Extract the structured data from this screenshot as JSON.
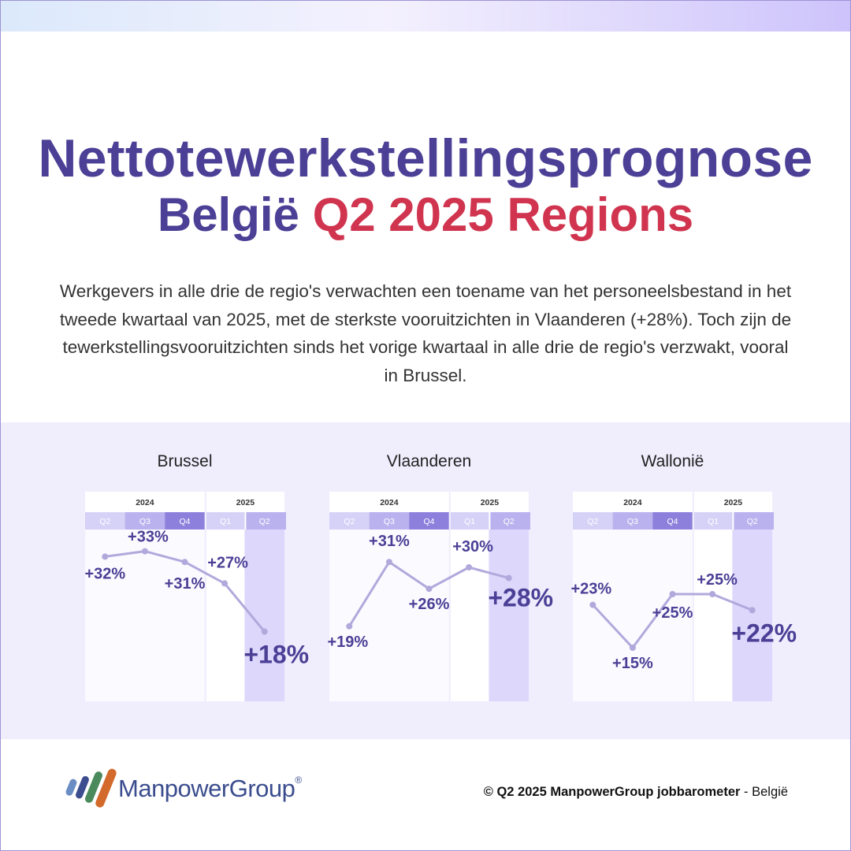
{
  "header": {
    "title_line1": "Nettotewerkstellingsprognose",
    "title_line2_main": "België",
    "title_line2_accent": "Q2 2025 Regions",
    "description": "Werkgevers in alle drie de regio's verwachten een toename van het personeelsbestand in het tweede kwartaal van 2025, met de sterkste vooruitzichten in Vlaanderen (+28%). Toch zijn de tewerkstellingsvooruitzichten sinds het vorige kwartaal in alle drie de regio's verzwakt, vooral in Brussel."
  },
  "colors": {
    "title": "#4b3f96",
    "accent": "#d0344f",
    "band_background": "#f0eefd",
    "line": "#b1a9dc",
    "label": "#4b3f96",
    "highlight_column": "#dcd7fb",
    "quarter_header_dark": "#8d80dc",
    "quarter_header_mid": "#bab2ee",
    "quarter_header_light": "#d6d1f6"
  },
  "chart_data": [
    {
      "type": "line",
      "title": "Brussel",
      "years": [
        "2024",
        "2025"
      ],
      "categories": [
        "Q2",
        "Q3",
        "Q4",
        "Q1",
        "Q2"
      ],
      "values": [
        32,
        33,
        31,
        27,
        18
      ],
      "labels": [
        "+32%",
        "+33%",
        "+31%",
        "+27%",
        "+18%"
      ],
      "ylim": [
        10,
        35
      ],
      "grid": false
    },
    {
      "type": "line",
      "title": "Vlaanderen",
      "years": [
        "2024",
        "2025"
      ],
      "categories": [
        "Q2",
        "Q3",
        "Q4",
        "Q1",
        "Q2"
      ],
      "values": [
        19,
        31,
        26,
        30,
        28
      ],
      "labels": [
        "+19%",
        "+31%",
        "+26%",
        "+30%",
        "+28%"
      ],
      "ylim": [
        10,
        35
      ],
      "grid": false
    },
    {
      "type": "line",
      "title": "Wallonië",
      "years": [
        "2024",
        "2025"
      ],
      "categories": [
        "Q2",
        "Q3",
        "Q4",
        "Q1",
        "Q2"
      ],
      "values": [
        23,
        15,
        25,
        25,
        22
      ],
      "labels": [
        "+23%",
        "+15%",
        "+25%",
        "+25%",
        "+22%"
      ],
      "ylim": [
        10,
        35
      ],
      "grid": false
    }
  ],
  "footer": {
    "logo_name": "ManpowerGroup",
    "logo_reg": "®",
    "copyright_symbol_year": "© Q2 2025",
    "copyright_brand": "ManpowerGroup jobbarometer",
    "copyright_suffix": "- België"
  }
}
